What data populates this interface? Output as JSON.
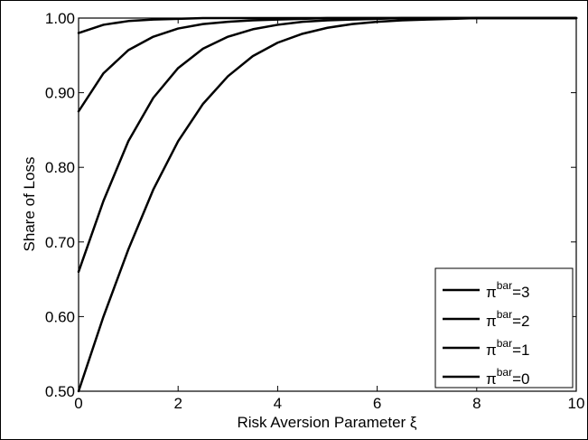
{
  "chart_data": {
    "type": "line",
    "title": "",
    "xlabel": "Risk Aversion Parameter ξ",
    "ylabel": "Share of Loss",
    "xlim": [
      0,
      10
    ],
    "ylim": [
      0.5,
      1.0
    ],
    "x_ticks": [
      0,
      2,
      4,
      6,
      8,
      10
    ],
    "x_tick_labels": [
      "0",
      "2",
      "4",
      "6",
      "8",
      "10"
    ],
    "y_ticks": [
      0.5,
      0.6,
      0.7,
      0.8,
      0.9,
      1.0
    ],
    "y_tick_labels": [
      "0.50",
      "0.60",
      "0.70",
      "0.80",
      "0.90",
      "1.00"
    ],
    "grid": false,
    "legend_position": "bottom-right",
    "line_color": "#000000",
    "x": [
      0,
      0.5,
      1,
      1.5,
      2,
      2.5,
      3,
      3.5,
      4,
      4.5,
      5,
      5.5,
      6,
      6.5,
      7,
      7.5,
      8,
      8.5,
      9,
      9.5,
      10
    ],
    "series": [
      {
        "name": "π^bar=3",
        "legend_symbol": "π",
        "legend_sup": "bar",
        "legend_value": "=3",
        "values": [
          0.98,
          0.991,
          0.996,
          0.998,
          0.999,
          1.0,
          1.0,
          1.0,
          1.0,
          1.0,
          1.0,
          1.0,
          1.0,
          1.0,
          1.0,
          1.0,
          1.0,
          1.0,
          1.0,
          1.0,
          1.0
        ]
      },
      {
        "name": "π^bar=2",
        "legend_symbol": "π",
        "legend_sup": "bar",
        "legend_value": "=2",
        "values": [
          0.875,
          0.926,
          0.957,
          0.975,
          0.986,
          0.992,
          0.995,
          0.997,
          0.998,
          0.999,
          1.0,
          1.0,
          1.0,
          1.0,
          1.0,
          1.0,
          1.0,
          1.0,
          1.0,
          1.0,
          1.0
        ]
      },
      {
        "name": "π^bar=1",
        "legend_symbol": "π",
        "legend_sup": "bar",
        "legend_value": "=1",
        "values": [
          0.66,
          0.755,
          0.835,
          0.893,
          0.933,
          0.959,
          0.975,
          0.985,
          0.991,
          0.995,
          0.997,
          0.998,
          0.999,
          1.0,
          1.0,
          1.0,
          1.0,
          1.0,
          1.0,
          1.0,
          1.0
        ]
      },
      {
        "name": "π^bar=0",
        "legend_symbol": "π",
        "legend_sup": "bar",
        "legend_value": "=0",
        "values": [
          0.5,
          0.6,
          0.69,
          0.77,
          0.835,
          0.885,
          0.922,
          0.949,
          0.967,
          0.979,
          0.987,
          0.992,
          0.995,
          0.997,
          0.998,
          0.999,
          1.0,
          1.0,
          1.0,
          1.0,
          1.0
        ]
      }
    ]
  }
}
